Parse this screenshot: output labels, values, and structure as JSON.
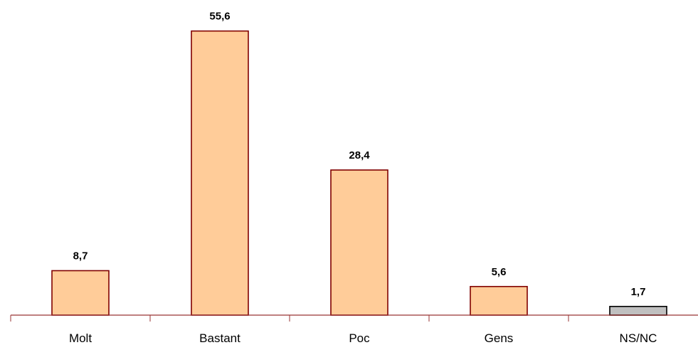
{
  "chart_data": {
    "type": "bar",
    "categories": [
      "Molt",
      "Bastant",
      "Poc",
      "Gens",
      "NS/NC"
    ],
    "values": [
      8.7,
      55.6,
      28.4,
      5.6,
      1.7
    ],
    "data_labels": [
      "8,7",
      "55,6",
      "28,4",
      "5,6",
      "1,7"
    ],
    "ylim": [
      0,
      60
    ],
    "grid": false,
    "show_legend": false,
    "bar_fills": [
      "#FFCC99",
      "#FFCC99",
      "#FFCC99",
      "#FFCC99",
      "#C0C0C0"
    ],
    "bar_borders": [
      "#800000",
      "#800000",
      "#800000",
      "#800000",
      "#000000"
    ],
    "axis_color": "#993333"
  }
}
